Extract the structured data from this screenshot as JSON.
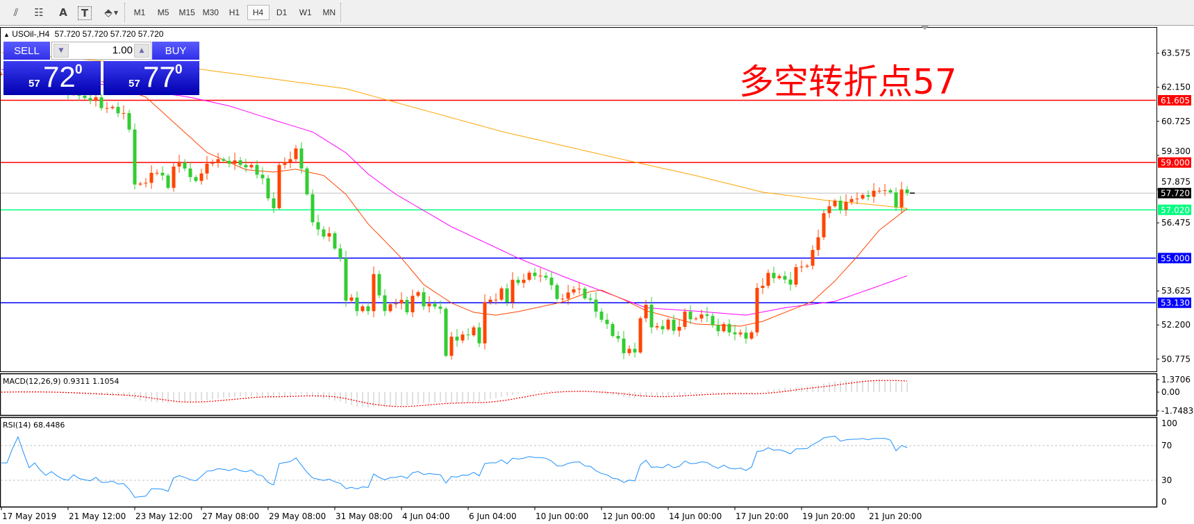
{
  "toolbar": {
    "tools": [
      {
        "name": "equidistant-channel-icon",
        "glyph": "⫽"
      },
      {
        "name": "fibonacci-icon",
        "glyph": "☷"
      },
      {
        "name": "text-icon",
        "glyph": "A"
      },
      {
        "name": "text-label-icon",
        "glyph": "T"
      },
      {
        "name": "arrows-icon",
        "glyph": "⬘"
      }
    ],
    "timeframes": [
      "M1",
      "M5",
      "M15",
      "M30",
      "H1",
      "H4",
      "D1",
      "W1",
      "MN"
    ],
    "active_timeframe": "H4"
  },
  "header": {
    "symbol": "USOil-,H4",
    "ohlc": "57.720 57.720 57.720 57.720"
  },
  "trade_panel": {
    "sell_label": "SELL",
    "buy_label": "BUY",
    "lot": "1.00",
    "sell_price": {
      "prefix": "57",
      "big": "72",
      "sup": "0"
    },
    "buy_price": {
      "prefix": "57",
      "big": "77",
      "sup": "0"
    }
  },
  "annotation": "多空转折点57",
  "colors": {
    "bull": "#FF4500",
    "bear": "#32CD32",
    "ma_fast": "#FF4500",
    "ma_mid": "#FF00FF",
    "ma_slow": "#FFA500",
    "rsi": "#1E90FF",
    "macd_hist": "#C0C0C0",
    "macd_signal": "#FF0000"
  },
  "chart_data": {
    "type": "candlestick",
    "symbol": "USOil-",
    "timeframe": "H4",
    "closes": [
      62.7,
      62.9,
      62.8,
      63.0,
      62.85,
      62.6,
      62.7,
      62.5,
      62.3,
      62.4,
      62.2,
      62.0,
      61.9,
      62.1,
      61.8,
      61.7,
      61.6,
      61.73,
      61.28,
      61.28,
      61.33,
      61.06,
      61.07,
      60.38,
      58.08,
      58.12,
      58.15,
      58.57,
      58.57,
      58.46,
      57.94,
      58.83,
      59.0,
      58.75,
      58.39,
      58.23,
      58.54,
      58.95,
      58.99,
      59.14,
      59.07,
      58.95,
      59.09,
      58.9,
      58.8,
      58.9,
      58.49,
      58.34,
      57.5,
      57.09,
      58.9,
      59.02,
      59.14,
      59.59,
      58.75,
      57.67,
      56.5,
      56.2,
      55.9,
      56.04,
      55.4,
      55.0,
      53.22,
      53.35,
      52.78,
      52.98,
      52.78,
      54.33,
      53.44,
      52.78,
      53.07,
      53.1,
      53.25,
      52.73,
      53.42,
      53.57,
      52.98,
      53.09,
      52.97,
      52.88,
      50.91,
      51.71,
      51.55,
      51.8,
      51.77,
      52.1,
      51.43,
      53.16,
      53.26,
      53.26,
      53.73,
      53.15,
      54.09,
      53.96,
      54.09,
      54.39,
      54.25,
      54.26,
      54.18,
      53.87,
      53.29,
      53.3,
      53.56,
      53.69,
      53.72,
      53.31,
      53.26,
      52.76,
      52.42,
      52.24,
      51.74,
      51.63,
      51.02,
      51.2,
      51.05,
      52.48,
      53.05,
      52.1,
      52.15,
      52.02,
      52.42,
      51.96,
      52.12,
      52.76,
      52.44,
      52.47,
      52.64,
      52.58,
      52.2,
      51.94,
      52.24,
      51.89,
      51.81,
      51.88,
      51.63,
      51.89,
      53.75,
      53.84,
      54.38,
      54.16,
      54.25,
      54.1,
      53.89,
      54.62,
      54.64,
      54.68,
      55.34,
      55.87,
      56.88,
      57.17,
      57.4,
      57.02,
      57.35,
      57.47,
      57.49,
      57.64,
      57.57,
      57.82,
      57.82,
      57.84,
      57.75,
      57.13,
      57.87,
      57.72
    ],
    "moving_averages": [
      {
        "key": "ma_slow",
        "points": [
          [
            0,
            63.6
          ],
          [
            36,
            62.9
          ],
          [
            62,
            62.09
          ],
          [
            90,
            60.3
          ],
          [
            112,
            59.12
          ],
          [
            125,
            58.45
          ],
          [
            137,
            57.76
          ],
          [
            148,
            57.43
          ],
          [
            157,
            57.23
          ],
          [
            163,
            57.08
          ]
        ]
      },
      {
        "key": "ma_mid",
        "points": [
          [
            0,
            62.9
          ],
          [
            34,
            61.73
          ],
          [
            41,
            61.37
          ],
          [
            49,
            60.78
          ],
          [
            56,
            60.28
          ],
          [
            62,
            59.41
          ],
          [
            66,
            58.52
          ],
          [
            71,
            57.67
          ],
          [
            81,
            56.31
          ],
          [
            89,
            55.44
          ],
          [
            93,
            55.0
          ],
          [
            101,
            54.24
          ],
          [
            110,
            53.45
          ],
          [
            116,
            52.92
          ],
          [
            125,
            52.78
          ],
          [
            134,
            52.61
          ],
          [
            141,
            52.92
          ],
          [
            150,
            53.19
          ],
          [
            158,
            53.84
          ],
          [
            163,
            54.26
          ]
        ]
      },
      {
        "key": "ma_fast",
        "points": [
          [
            18,
            62.4
          ],
          [
            26,
            61.74
          ],
          [
            37,
            59.42
          ],
          [
            44,
            58.7
          ],
          [
            49,
            58.6
          ],
          [
            53,
            58.72
          ],
          [
            58,
            58.46
          ],
          [
            62,
            57.67
          ],
          [
            66,
            56.43
          ],
          [
            72,
            55.0
          ],
          [
            76,
            53.89
          ],
          [
            81,
            53.12
          ],
          [
            85,
            52.73
          ],
          [
            89,
            52.61
          ],
          [
            93,
            52.76
          ],
          [
            97,
            52.96
          ],
          [
            101,
            53.16
          ],
          [
            106,
            53.6
          ],
          [
            108,
            53.66
          ],
          [
            112,
            53.26
          ],
          [
            116,
            52.8
          ],
          [
            125,
            52.24
          ],
          [
            133,
            52.15
          ],
          [
            137,
            52.35
          ],
          [
            146,
            53.19
          ],
          [
            150,
            54.04
          ],
          [
            154,
            55.06
          ],
          [
            158,
            56.17
          ],
          [
            163,
            57.07
          ]
        ]
      }
    ],
    "horizontal_lines": [
      {
        "price": "61.605",
        "color": "#FF0000"
      },
      {
        "price": "59.000",
        "color": "#FF0000"
      },
      {
        "price": "57.720",
        "color": "#000000",
        "line_color": "#C0C0C0"
      },
      {
        "price": "57.020",
        "color": "#00FF7F"
      },
      {
        "price": "55.000",
        "color": "#0000FF"
      },
      {
        "price": "53.130",
        "color": "#0000FF"
      }
    ],
    "price_ticks": [
      "63.575",
      "62.150",
      "60.725",
      "59.300",
      "57.875",
      "56.475",
      "53.625",
      "52.200",
      "50.775"
    ],
    "time_labels": [
      "17 May 2019",
      "21 May 12:00",
      "23 May 12:00",
      "27 May 08:00",
      "29 May 08:00",
      "31 May 08:00",
      "4 Jun 04:00",
      "6 Jun 04:00",
      "10 Jun 00:00",
      "12 Jun 00:00",
      "14 Jun 00:00",
      "17 Jun 20:00",
      "19 Jun 20:00",
      "21 Jun 20:00"
    ],
    "macd": {
      "label": "MACD(12,26,9) 0.9311 1.1054",
      "ticks": [
        "1.3706",
        "0.00",
        "-1.7483"
      ]
    },
    "rsi": {
      "label": "RSI(14) 68.4486",
      "ticks": [
        "100",
        "70",
        "30",
        "0"
      ],
      "levels": [
        70,
        30
      ]
    }
  }
}
